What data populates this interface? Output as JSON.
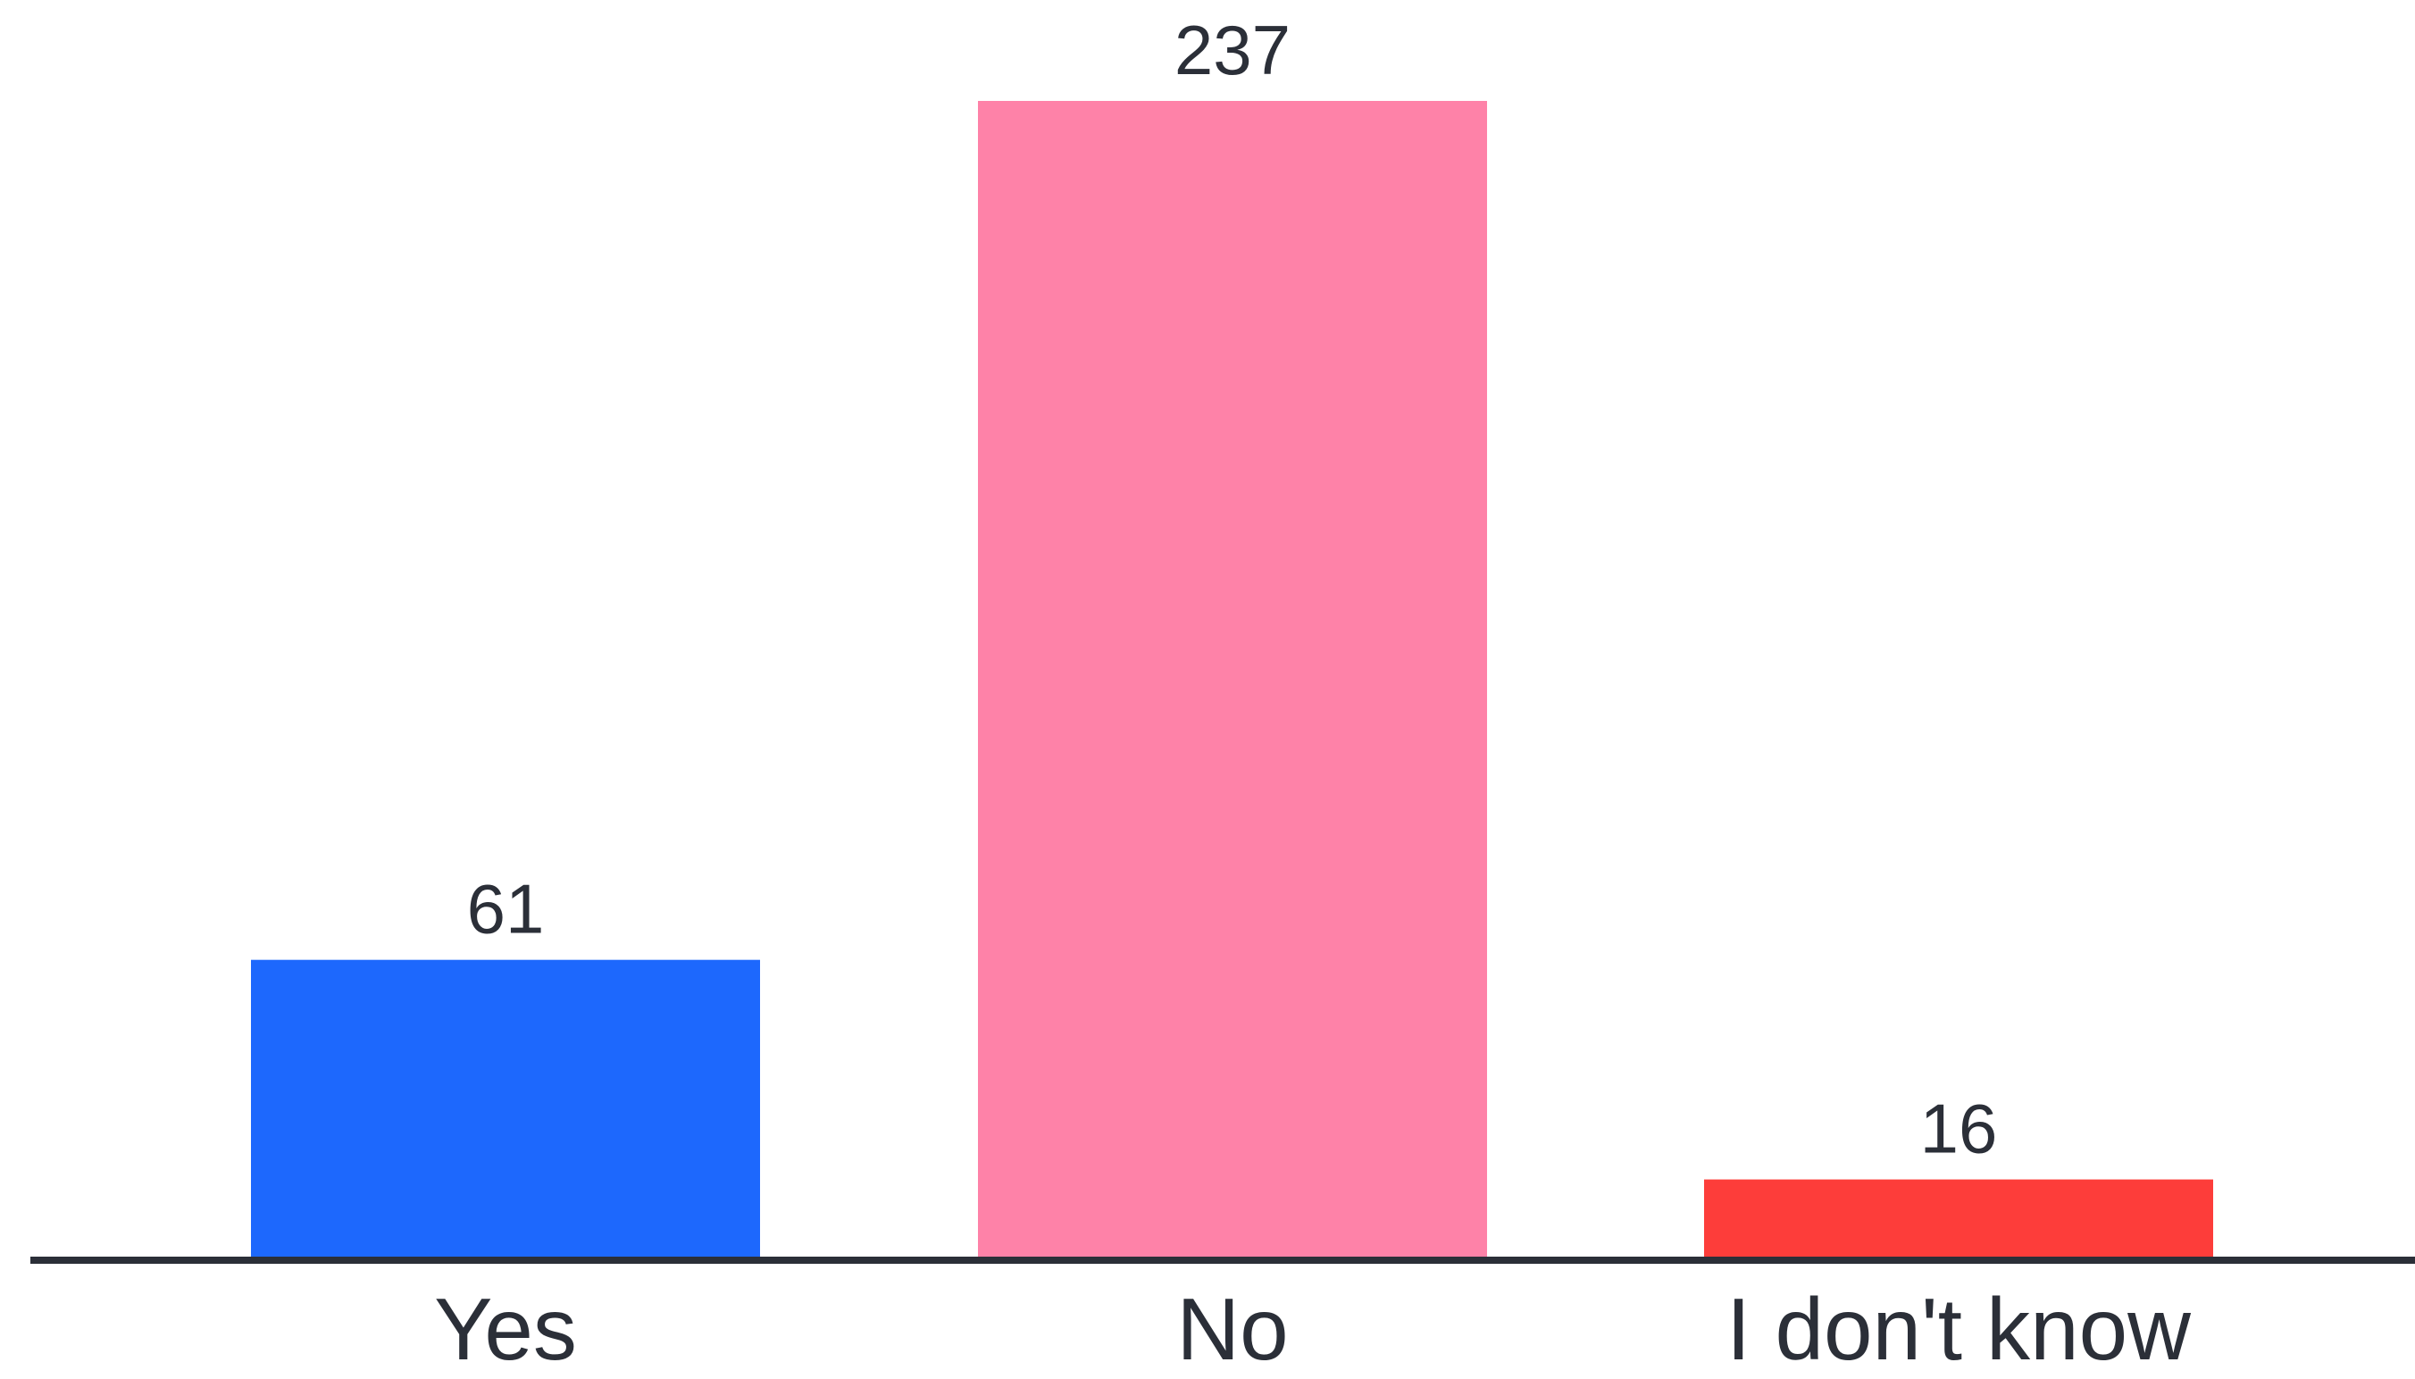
{
  "chart_data": {
    "type": "bar",
    "categories": [
      "Yes",
      "No",
      "I don't know"
    ],
    "values": [
      61,
      237,
      16
    ],
    "value_labels": [
      "61",
      "237",
      "16"
    ],
    "colors": [
      "#1d68fd",
      "#fe82a8",
      "#fd3d3a"
    ],
    "axis_color": "#2b2f38",
    "text_color": "#2b2f38",
    "ylim": [
      0,
      237
    ],
    "grid": false,
    "legend": "none",
    "title": "",
    "xlabel": "",
    "ylabel": ""
  }
}
